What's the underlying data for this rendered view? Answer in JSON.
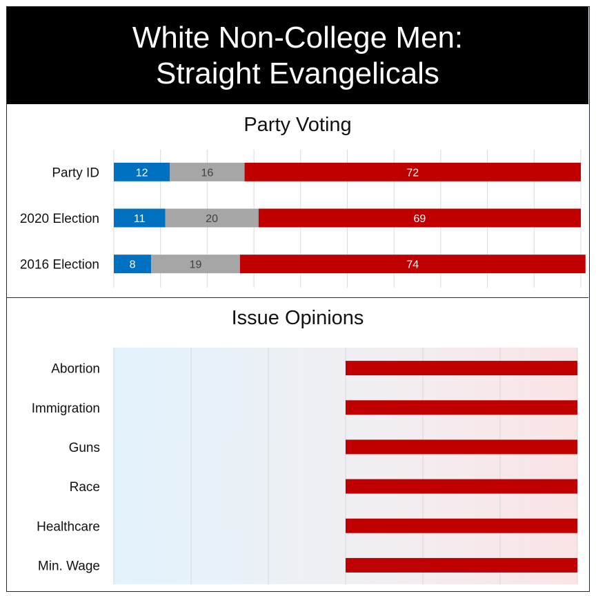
{
  "header": {
    "line1": "White Non-College Men:",
    "line2": "Straight Evangelicals"
  },
  "colors": {
    "dem": "#0070c0",
    "ind": "#a6a6a6",
    "rep": "#c00000",
    "grid": "#d9d9d9"
  },
  "chart_data": [
    {
      "type": "bar",
      "stacked": true,
      "orientation": "horizontal",
      "title": "Party Voting",
      "categories": [
        "Party ID",
        "2020 Election",
        "2016 Election"
      ],
      "series": [
        {
          "values": [
            12,
            11,
            8
          ],
          "color": "#0070c0"
        },
        {
          "values": [
            16,
            20,
            19
          ],
          "color": "#a6a6a6"
        },
        {
          "values": [
            72,
            69,
            74
          ],
          "color": "#c00000"
        }
      ],
      "xlim": [
        0,
        100
      ],
      "grid": true
    },
    {
      "type": "bar",
      "orientation": "horizontal",
      "title": "Issue Opinions",
      "categories": [
        "Abortion",
        "Immigration",
        "Guns",
        "Race",
        "Healthcare",
        "Min. Wage"
      ],
      "values": [
        {
          "from": 0,
          "to": 3
        },
        {
          "from": 0,
          "to": 3
        },
        {
          "from": 0,
          "to": 3
        },
        {
          "from": 0,
          "to": 3
        },
        {
          "from": 0,
          "to": 3
        },
        {
          "from": 0,
          "to": 3
        }
      ],
      "xlim": [
        -3,
        3
      ],
      "background_gradient": [
        "#e3f3fc",
        "#fbe4e6"
      ],
      "grid": true
    }
  ]
}
